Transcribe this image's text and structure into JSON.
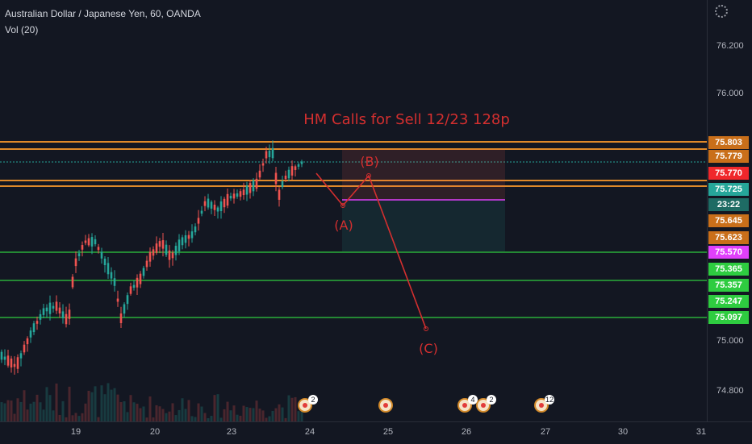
{
  "header": {
    "symbol_line": "Australian Dollar / Japanese Yen, 60, OANDA",
    "indicator": "Vol (20)"
  },
  "annotation": {
    "title": "HM Calls for Sell 12/23 128p",
    "wave_a": "(A)",
    "wave_b": "(B)",
    "wave_c": "(C)"
  },
  "price_axis": {
    "ticks": [
      "76.200",
      "76.000",
      "75.000",
      "74.800"
    ],
    "badges": [
      {
        "label": "75.803",
        "bg": "#c96f1a",
        "fg": "#ffffff"
      },
      {
        "label": "75.779",
        "bg": "#c96f1a",
        "fg": "#ffffff"
      },
      {
        "label": "75.770",
        "bg": "#f0272b",
        "fg": "#ffffff"
      },
      {
        "label": "75.725",
        "bg": "#26a69a",
        "fg": "#ffffff"
      },
      {
        "label": "23:22",
        "bg": "#1e6b64",
        "fg": "#ffffff"
      },
      {
        "label": "75.645",
        "bg": "#c96f1a",
        "fg": "#ffffff"
      },
      {
        "label": "75.623",
        "bg": "#c96f1a",
        "fg": "#ffffff"
      },
      {
        "label": "75.570",
        "bg": "#e040fb",
        "fg": "#ffffff"
      },
      {
        "label": "75.365",
        "bg": "#2ecc40",
        "fg": "#ffffff"
      },
      {
        "label": "75.357",
        "bg": "#2ecc40",
        "fg": "#ffffff"
      },
      {
        "label": "75.247",
        "bg": "#2ecc40",
        "fg": "#ffffff"
      },
      {
        "label": "75.097",
        "bg": "#2ecc40",
        "fg": "#ffffff"
      }
    ]
  },
  "time_axis": {
    "ticks": [
      "19",
      "20",
      "23",
      "24",
      "25",
      "26",
      "27",
      "30",
      "31"
    ]
  },
  "events": [
    {
      "count": "2",
      "icon": "australia-flag-icon"
    },
    {
      "count": "",
      "icon": "event-icon"
    },
    {
      "count": "4",
      "icon": "event-icon"
    },
    {
      "count": "2",
      "icon": "event-icon"
    },
    {
      "count": "12",
      "icon": "event-icon"
    }
  ],
  "colors": {
    "background": "#131722",
    "up": "#26a69a",
    "down": "#ef5350",
    "resistance": "#e08a2a",
    "support": "#2ecc40",
    "wave": "#d32f2f",
    "target": "#e040fb"
  }
}
